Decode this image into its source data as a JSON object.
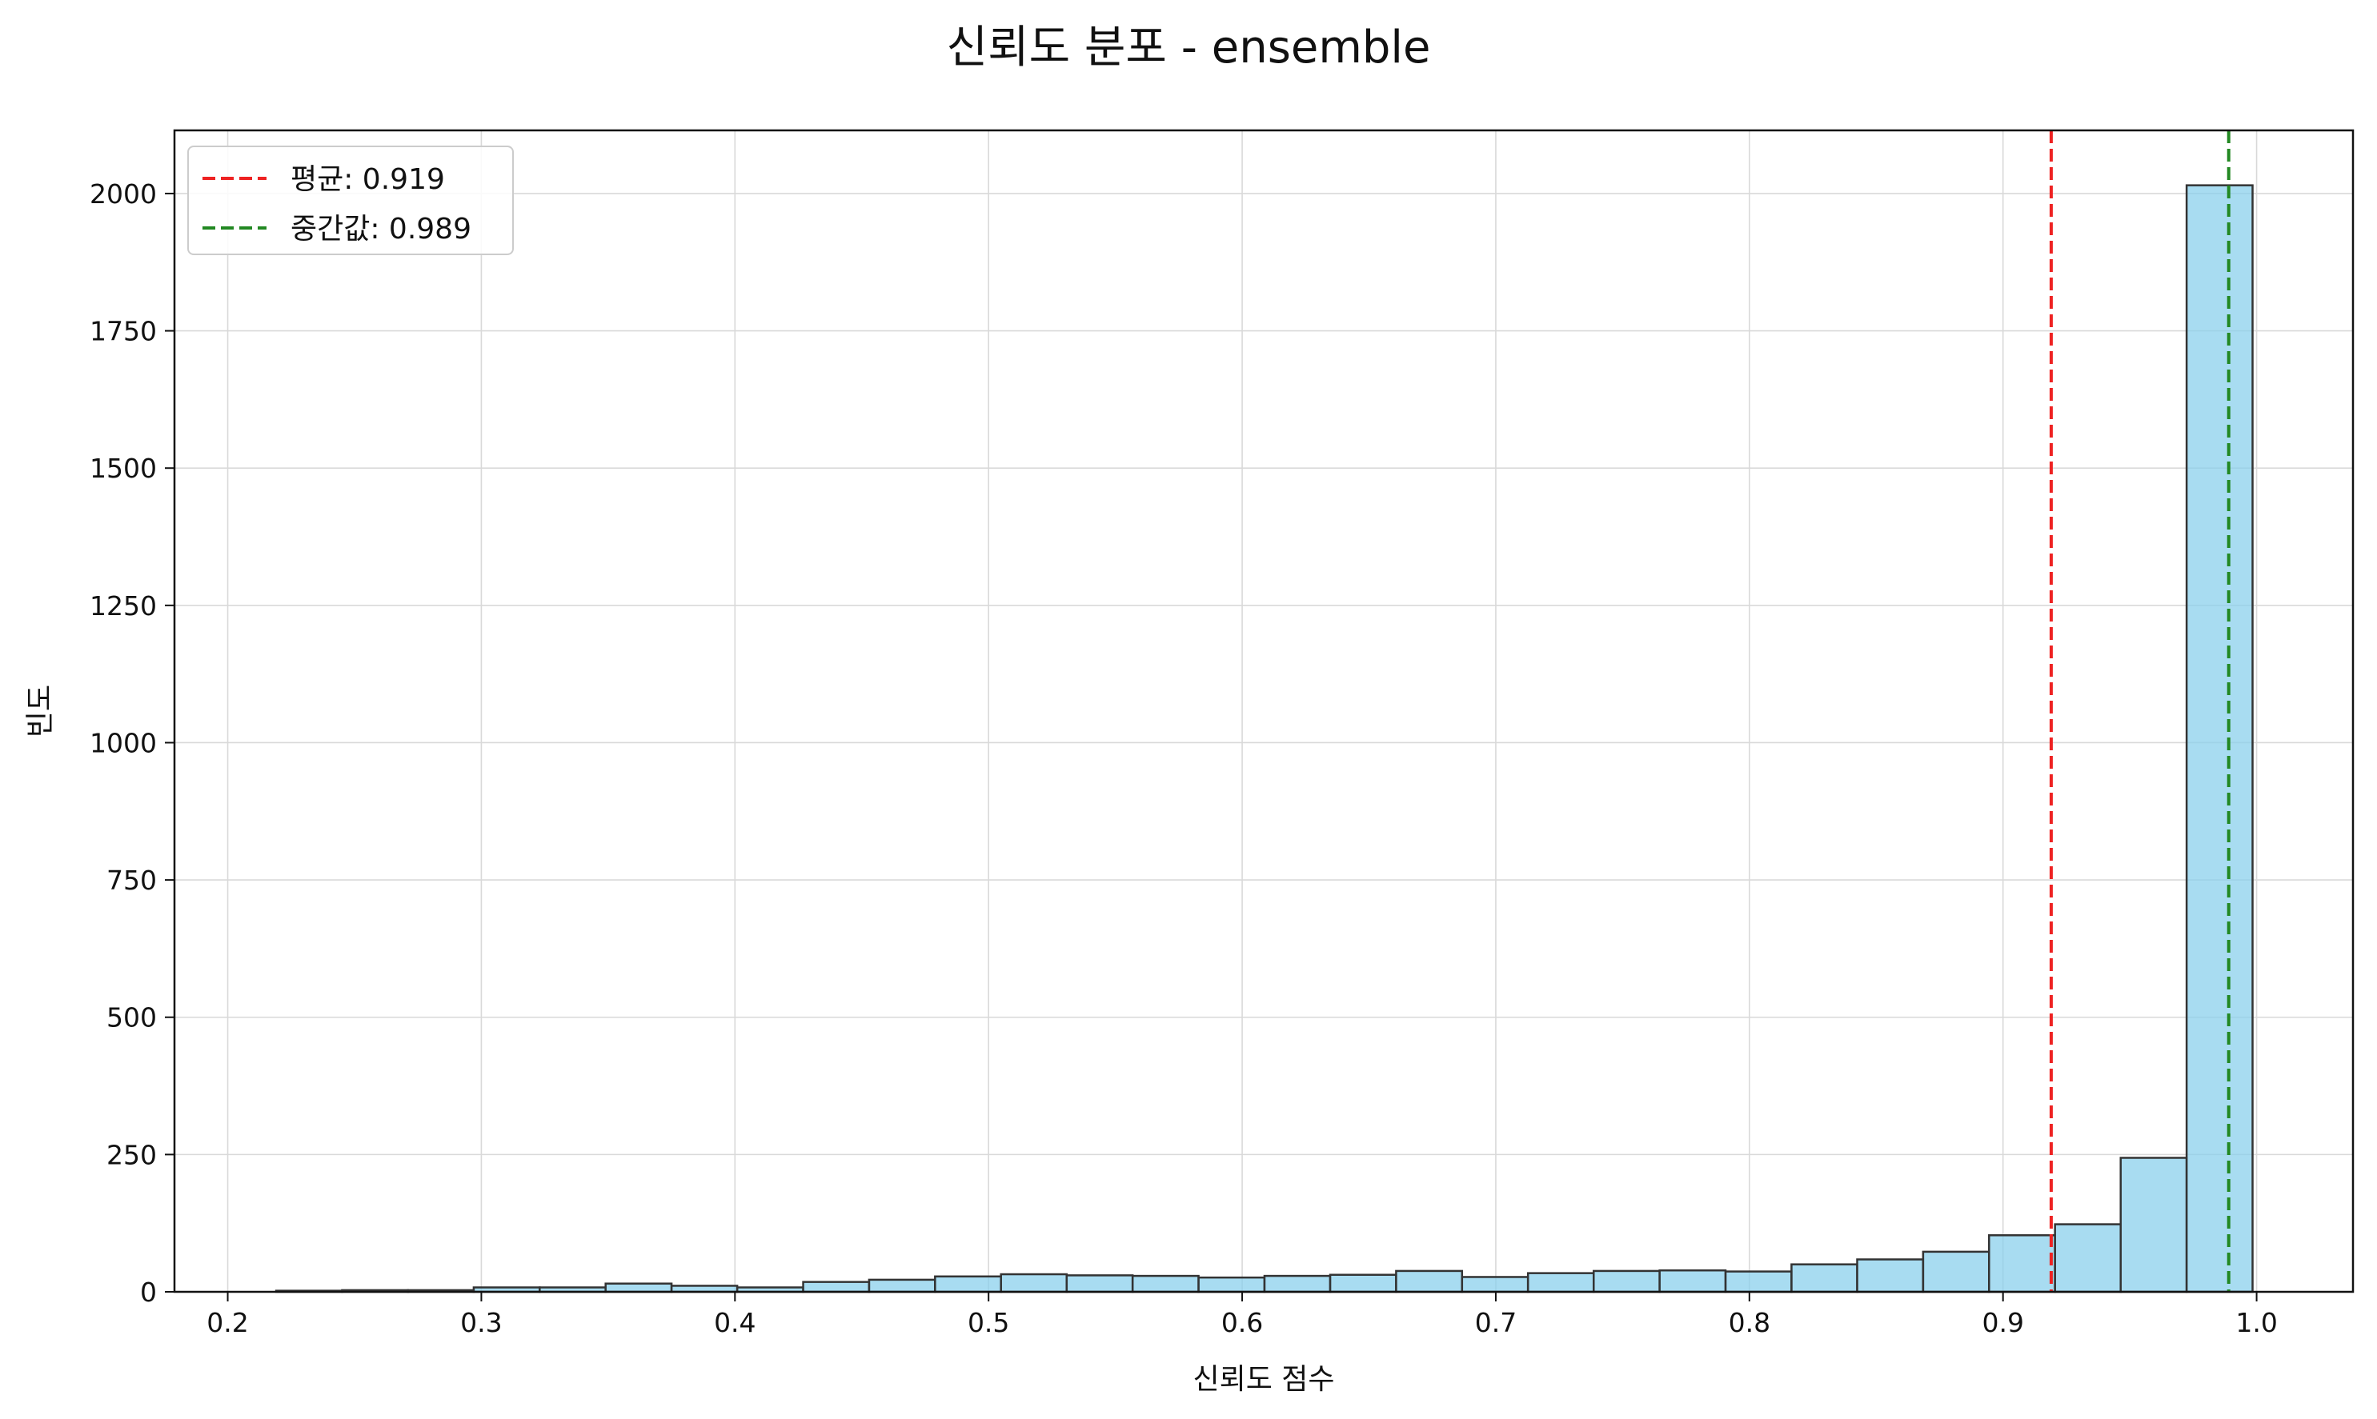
{
  "chart_data": {
    "type": "bar",
    "title": "신뢰도 분포 - ensemble",
    "xlabel": "신뢰도 점수",
    "ylabel": "빈도",
    "xlim": [
      0.179,
      1.038
    ],
    "ylim": [
      0,
      2115
    ],
    "x_ticks": [
      0.2,
      0.3,
      0.4,
      0.5,
      0.6,
      0.7,
      0.8,
      0.9,
      1.0
    ],
    "x_tick_labels": [
      "0.2",
      "0.3",
      "0.4",
      "0.5",
      "0.6",
      "0.7",
      "0.8",
      "0.9",
      "1.0"
    ],
    "y_ticks": [
      0,
      250,
      500,
      750,
      1000,
      1250,
      1500,
      1750,
      2000
    ],
    "y_tick_labels": [
      "0",
      "250",
      "500",
      "750",
      "1000",
      "1250",
      "1500",
      "1750",
      "2000"
    ],
    "grid": true,
    "legend_position": "top-left",
    "bar_color": "#87ceeb",
    "bar_edge_color": "#333333",
    "bins": [
      {
        "x0": 0.2191,
        "x1": 0.2451,
        "value": 2
      },
      {
        "x0": 0.2451,
        "x1": 0.2711,
        "value": 3
      },
      {
        "x0": 0.2711,
        "x1": 0.297,
        "value": 3
      },
      {
        "x0": 0.297,
        "x1": 0.323,
        "value": 8
      },
      {
        "x0": 0.323,
        "x1": 0.349,
        "value": 8
      },
      {
        "x0": 0.349,
        "x1": 0.375,
        "value": 15
      },
      {
        "x0": 0.375,
        "x1": 0.4009,
        "value": 11
      },
      {
        "x0": 0.4009,
        "x1": 0.4269,
        "value": 8
      },
      {
        "x0": 0.4269,
        "x1": 0.4529,
        "value": 18
      },
      {
        "x0": 0.4529,
        "x1": 0.4789,
        "value": 22
      },
      {
        "x0": 0.4789,
        "x1": 0.5049,
        "value": 28
      },
      {
        "x0": 0.5049,
        "x1": 0.5308,
        "value": 32
      },
      {
        "x0": 0.5308,
        "x1": 0.5568,
        "value": 30
      },
      {
        "x0": 0.5568,
        "x1": 0.5828,
        "value": 29
      },
      {
        "x0": 0.5828,
        "x1": 0.6088,
        "value": 26
      },
      {
        "x0": 0.6088,
        "x1": 0.6347,
        "value": 29
      },
      {
        "x0": 0.6347,
        "x1": 0.6607,
        "value": 31
      },
      {
        "x0": 0.6607,
        "x1": 0.6867,
        "value": 38
      },
      {
        "x0": 0.6867,
        "x1": 0.7127,
        "value": 27
      },
      {
        "x0": 0.7127,
        "x1": 0.7386,
        "value": 34
      },
      {
        "x0": 0.7386,
        "x1": 0.7646,
        "value": 38
      },
      {
        "x0": 0.7646,
        "x1": 0.7906,
        "value": 39
      },
      {
        "x0": 0.7906,
        "x1": 0.8166,
        "value": 37
      },
      {
        "x0": 0.8166,
        "x1": 0.8425,
        "value": 50
      },
      {
        "x0": 0.8425,
        "x1": 0.8685,
        "value": 59
      },
      {
        "x0": 0.8685,
        "x1": 0.8945,
        "value": 73
      },
      {
        "x0": 0.8945,
        "x1": 0.9205,
        "value": 103
      },
      {
        "x0": 0.9205,
        "x1": 0.9464,
        "value": 123
      },
      {
        "x0": 0.9464,
        "x1": 0.9724,
        "value": 244
      },
      {
        "x0": 0.9724,
        "x1": 0.9984,
        "value": 2015
      }
    ],
    "reference_lines": [
      {
        "label": "평균: 0.919",
        "x": 0.919,
        "color": "#ee2222"
      },
      {
        "label": "중간값: 0.989",
        "x": 0.989,
        "color": "#228822"
      }
    ]
  }
}
